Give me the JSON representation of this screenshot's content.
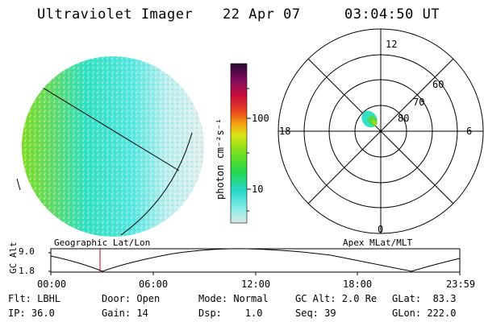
{
  "header": {
    "title": "Ultraviolet Imager",
    "date": "22 Apr 07",
    "time": "03:04:50 UT"
  },
  "colorbar": {
    "label": "photon cm⁻²s⁻¹",
    "ticks": [
      "100",
      "10"
    ]
  },
  "polar_plot": {
    "mlt_labels": [
      "12",
      "18",
      "6",
      "0"
    ],
    "lat_labels": [
      "60",
      "70",
      "80"
    ]
  },
  "timeline": {
    "left_title": "Geographic Lat/Lon",
    "right_title": "Apex MLat/MLT",
    "axis_label": "GC Alt",
    "y_ticks": [
      "9.0",
      "1.8"
    ],
    "time_ticks": [
      "00:00",
      "06:00",
      "12:00",
      "18:00",
      "23:59"
    ]
  },
  "status": {
    "filter": "Flt: LBHL",
    "ip": "IP: 36.0",
    "door": "Door: Open",
    "gain": "Gain: 14",
    "mode": "Mode: Normal",
    "dsp": "Dsp:    1.0",
    "gc_alt": "GC Alt: 2.0 Re",
    "seq": "Seq: 39",
    "glat": "GLat:  83.3",
    "glon": "GLon: 222.0"
  }
}
